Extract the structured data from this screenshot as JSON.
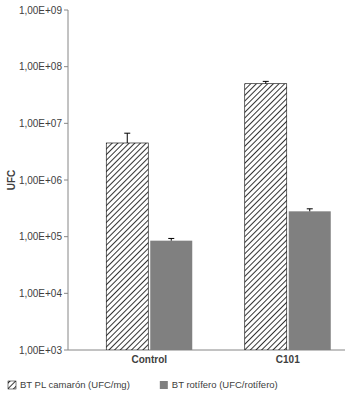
{
  "chart_data": {
    "type": "bar",
    "y_label": "UFC",
    "categories": [
      "Control",
      "C101"
    ],
    "series": [
      {
        "name": "BT PL camarón (UFC/mg)",
        "color": "#000000",
        "marker": "hatch",
        "values": [
          4500000,
          50000000
        ],
        "errors": [
          2200000,
          5000000
        ]
      },
      {
        "name": "BT rotífero (UFC/rotífero)",
        "color": "#808080",
        "marker": "solid",
        "values": [
          85000,
          280000
        ],
        "errors": [
          8000,
          30000
        ]
      }
    ],
    "log": "y",
    "ylim": [
      1000,
      1000000000
    ],
    "yticks": [
      {
        "value": 1000,
        "label": "1,00E+03"
      },
      {
        "value": 10000,
        "label": "1,00E+04"
      },
      {
        "value": 100000,
        "label": "1,00E+05"
      },
      {
        "value": 1000000,
        "label": "1,00E+06"
      },
      {
        "value": 10000000,
        "label": "1,00E+07"
      },
      {
        "value": 100000000,
        "label": "1,00E+08"
      },
      {
        "value": 1000000000,
        "label": "1,00E+09"
      }
    ],
    "grid": false,
    "legend": "bottom"
  }
}
